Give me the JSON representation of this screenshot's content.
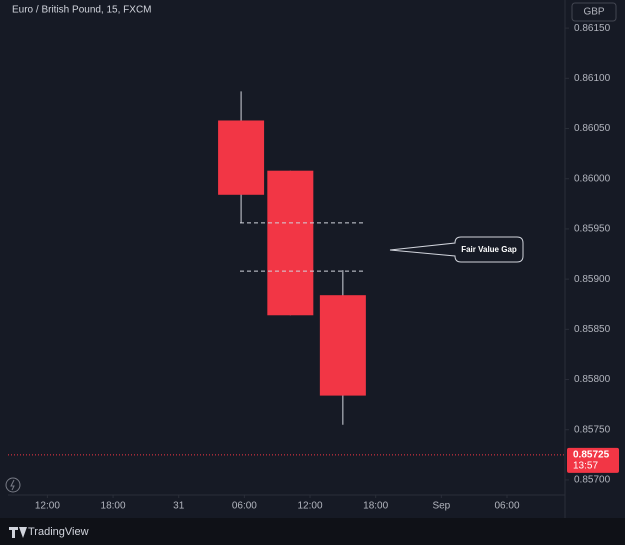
{
  "chart_data": {
    "type": "candlestick",
    "title": "Euro / British Pound, 15, FXCM",
    "currency": "GBP",
    "brand": "TradingView",
    "color": "#f23645",
    "xlim": [
      -3.6,
      47.3
    ],
    "xticks": [
      {
        "value": 0,
        "label": "12:00"
      },
      {
        "value": 6,
        "label": "18:00"
      },
      {
        "value": 12,
        "label": "31"
      },
      {
        "value": 18,
        "label": "06:00"
      },
      {
        "value": 24,
        "label": "12:00"
      },
      {
        "value": 30,
        "label": "18:00"
      },
      {
        "value": 36,
        "label": "Sep"
      },
      {
        "value": 42,
        "label": "06:00"
      }
    ],
    "ylim": [
      0.85685,
      0.86178
    ],
    "yticks": [
      {
        "value": 0.8615,
        "label": "0.86150"
      },
      {
        "value": 0.861,
        "label": "0.86100"
      },
      {
        "value": 0.8605,
        "label": "0.86050"
      },
      {
        "value": 0.86,
        "label": "0.86000"
      },
      {
        "value": 0.8595,
        "label": "0.85950"
      },
      {
        "value": 0.859,
        "label": "0.85900"
      },
      {
        "value": 0.8585,
        "label": "0.85850"
      },
      {
        "value": 0.858,
        "label": "0.85800"
      },
      {
        "value": 0.8575,
        "label": "0.85750"
      },
      {
        "value": 0.857,
        "label": "0.85700"
      }
    ],
    "x": [
      17.7,
      22.2,
      27
    ],
    "open": [
      0.86058,
      0.86008,
      0.85884
    ],
    "high": [
      0.86087,
      0.86008,
      0.85909
    ],
    "low": [
      0.85956,
      0.85864,
      0.85755
    ],
    "close": [
      0.85984,
      0.85864,
      0.85784
    ],
    "gap_lines": [
      0.85956,
      0.85908
    ],
    "annotation": "Fair Value Gap",
    "last_price": 0.85725,
    "countdown": "13:57"
  }
}
